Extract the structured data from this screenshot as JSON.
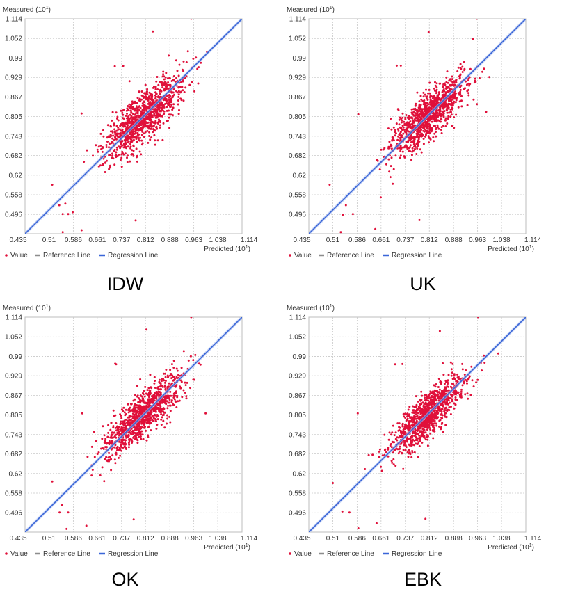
{
  "chart_data": [
    {
      "type": "scatter",
      "caption": "IDW",
      "ylabel": "Measured (10",
      "ylabel_sup": "1",
      "xlabel": "Predicted (10",
      "xlabel_sup": "1",
      "xlim": [
        0.435,
        1.114
      ],
      "ylim": [
        0.435,
        1.114
      ],
      "x_ticks": [
        "0.435",
        "0.51",
        "0.586",
        "0.661",
        "0.737",
        "0.812",
        "0.888",
        "0.963",
        "1.038",
        "1.114"
      ],
      "y_ticks": [
        "1.114",
        "1.052",
        "0.99",
        "0.929",
        "0.867",
        "0.805",
        "0.743",
        "0.682",
        "0.62",
        "0.558",
        "0.496"
      ],
      "legend": [
        "Value",
        "Reference Line",
        "Regression Line"
      ],
      "colors": {
        "points": "#e0103a",
        "reference": "#8c8c8c",
        "regression": "#3a66d8"
      },
      "regression": {
        "x0": 0.435,
        "y0": 0.435,
        "x1": 1.114,
        "y1": 1.114
      },
      "cloud": {
        "n": 1050,
        "center": 0.805,
        "spread": 0.055,
        "noise": 0.042,
        "seed": 11
      },
      "outliers": [
        {
          "x": 0.955,
          "y": 1.114
        },
        {
          "x": 0.835,
          "y": 1.074
        },
        {
          "x": 0.612,
          "y": 0.446
        },
        {
          "x": 0.742,
          "y": 0.965
        },
        {
          "x": 0.716,
          "y": 0.964
        },
        {
          "x": 0.781,
          "y": 0.477
        },
        {
          "x": 0.553,
          "y": 0.497
        },
        {
          "x": 0.57,
          "y": 0.497
        },
        {
          "x": 0.542,
          "y": 0.525
        },
        {
          "x": 0.584,
          "y": 0.503
        },
        {
          "x": 0.561,
          "y": 0.53
        },
        {
          "x": 0.52,
          "y": 0.59
        },
        {
          "x": 0.553,
          "y": 0.44
        },
        {
          "x": 0.612,
          "y": 0.815
        },
        {
          "x": 0.985,
          "y": 0.975
        }
      ]
    },
    {
      "type": "scatter",
      "caption": "UK",
      "ylabel": "Measured (10",
      "ylabel_sup": "1",
      "xlabel": "Predicted (10",
      "xlabel_sup": "1",
      "xlim": [
        0.435,
        1.114
      ],
      "ylim": [
        0.435,
        1.114
      ],
      "x_ticks": [
        "0.435",
        "0.51",
        "0.586",
        "0.661",
        "0.737",
        "0.812",
        "0.888",
        "0.963",
        "1.038",
        "1.114"
      ],
      "y_ticks": [
        "1.114",
        "1.052",
        "0.99",
        "0.929",
        "0.867",
        "0.805",
        "0.743",
        "0.682",
        "0.62",
        "0.558",
        "0.496"
      ],
      "legend": [
        "Value",
        "Reference Line",
        "Regression Line"
      ],
      "colors": {
        "points": "#e0103a",
        "reference": "#8c8c8c",
        "regression": "#3a66d8"
      },
      "regression": {
        "x0": 0.435,
        "y0": 0.435,
        "x1": 1.114,
        "y1": 1.114
      },
      "cloud": {
        "n": 1050,
        "center": 0.805,
        "spread": 0.053,
        "noise": 0.04,
        "seed": 23
      },
      "outliers": [
        {
          "x": 0.96,
          "y": 1.114
        },
        {
          "x": 0.81,
          "y": 1.072
        },
        {
          "x": 0.643,
          "y": 0.45
        },
        {
          "x": 0.71,
          "y": 0.966
        },
        {
          "x": 0.723,
          "y": 0.966
        },
        {
          "x": 0.781,
          "y": 0.478
        },
        {
          "x": 0.541,
          "y": 0.495
        },
        {
          "x": 0.573,
          "y": 0.497
        },
        {
          "x": 0.551,
          "y": 0.525
        },
        {
          "x": 0.5,
          "y": 0.59
        },
        {
          "x": 0.535,
          "y": 0.44
        },
        {
          "x": 0.59,
          "y": 0.812
        },
        {
          "x": 0.99,
          "y": 0.82
        },
        {
          "x": 1.0,
          "y": 0.93
        },
        {
          "x": 0.66,
          "y": 0.55
        }
      ]
    },
    {
      "type": "scatter",
      "caption": "OK",
      "ylabel": "Measured (10",
      "ylabel_sup": "1",
      "xlabel": "Predicted (10",
      "xlabel_sup": "1",
      "xlim": [
        0.435,
        1.114
      ],
      "ylim": [
        0.435,
        1.114
      ],
      "x_ticks": [
        "0.435",
        "0.51",
        "0.586",
        "0.661",
        "0.737",
        "0.812",
        "0.888",
        "0.963",
        "1.038",
        "1.114"
      ],
      "y_ticks": [
        "1.114",
        "1.052",
        "0.99",
        "0.929",
        "0.867",
        "0.805",
        "0.743",
        "0.682",
        "0.62",
        "0.558",
        "0.496"
      ],
      "legend": [
        "Value",
        "Reference Line",
        "Regression Line"
      ],
      "colors": {
        "points": "#e0103a",
        "reference": "#8c8c8c",
        "regression": "#3a66d8"
      },
      "regression": {
        "x0": 0.435,
        "y0": 0.435,
        "x1": 1.114,
        "y1": 1.114
      },
      "cloud": {
        "n": 1050,
        "center": 0.805,
        "spread": 0.055,
        "noise": 0.04,
        "seed": 37
      },
      "outliers": [
        {
          "x": 0.955,
          "y": 1.114
        },
        {
          "x": 0.815,
          "y": 1.075
        },
        {
          "x": 0.565,
          "y": 0.445
        },
        {
          "x": 0.717,
          "y": 0.967
        },
        {
          "x": 0.72,
          "y": 0.965
        },
        {
          "x": 0.775,
          "y": 0.475
        },
        {
          "x": 0.543,
          "y": 0.497
        },
        {
          "x": 0.57,
          "y": 0.497
        },
        {
          "x": 0.551,
          "y": 0.52
        },
        {
          "x": 0.52,
          "y": 0.595
        },
        {
          "x": 0.627,
          "y": 0.455
        },
        {
          "x": 0.614,
          "y": 0.81
        },
        {
          "x": 1.0,
          "y": 0.81
        }
      ]
    },
    {
      "type": "scatter",
      "caption": "EBK",
      "ylabel": "Measured (10",
      "ylabel_sup": "1",
      "xlabel": "Predicted (10",
      "xlabel_sup": "1",
      "xlim": [
        0.435,
        1.114
      ],
      "ylim": [
        0.435,
        1.114
      ],
      "x_ticks": [
        "0.435",
        "0.51",
        "0.586",
        "0.661",
        "0.737",
        "0.812",
        "0.888",
        "0.963",
        "1.038",
        "1.114"
      ],
      "y_ticks": [
        "1.114",
        "1.052",
        "0.99",
        "0.929",
        "0.867",
        "0.805",
        "0.743",
        "0.682",
        "0.62",
        "0.558",
        "0.496"
      ],
      "legend": [
        "Value",
        "Reference Line",
        "Regression Line"
      ],
      "colors": {
        "points": "#e0103a",
        "reference": "#8c8c8c",
        "regression": "#3a66d8"
      },
      "regression": {
        "x0": 0.435,
        "y0": 0.435,
        "x1": 1.114,
        "y1": 1.114
      },
      "cloud": {
        "n": 1050,
        "center": 0.805,
        "spread": 0.054,
        "noise": 0.038,
        "seed": 53
      },
      "outliers": [
        {
          "x": 0.965,
          "y": 1.114
        },
        {
          "x": 0.845,
          "y": 1.07
        },
        {
          "x": 0.59,
          "y": 0.447
        },
        {
          "x": 0.705,
          "y": 0.965
        },
        {
          "x": 0.728,
          "y": 0.966
        },
        {
          "x": 0.8,
          "y": 0.477
        },
        {
          "x": 0.54,
          "y": 0.5
        },
        {
          "x": 0.562,
          "y": 0.497
        },
        {
          "x": 0.525,
          "y": 0.525
        },
        {
          "x": 0.51,
          "y": 0.59
        },
        {
          "x": 0.647,
          "y": 0.463
        },
        {
          "x": 0.588,
          "y": 0.81
        },
        {
          "x": 0.985,
          "y": 0.97
        }
      ]
    }
  ]
}
